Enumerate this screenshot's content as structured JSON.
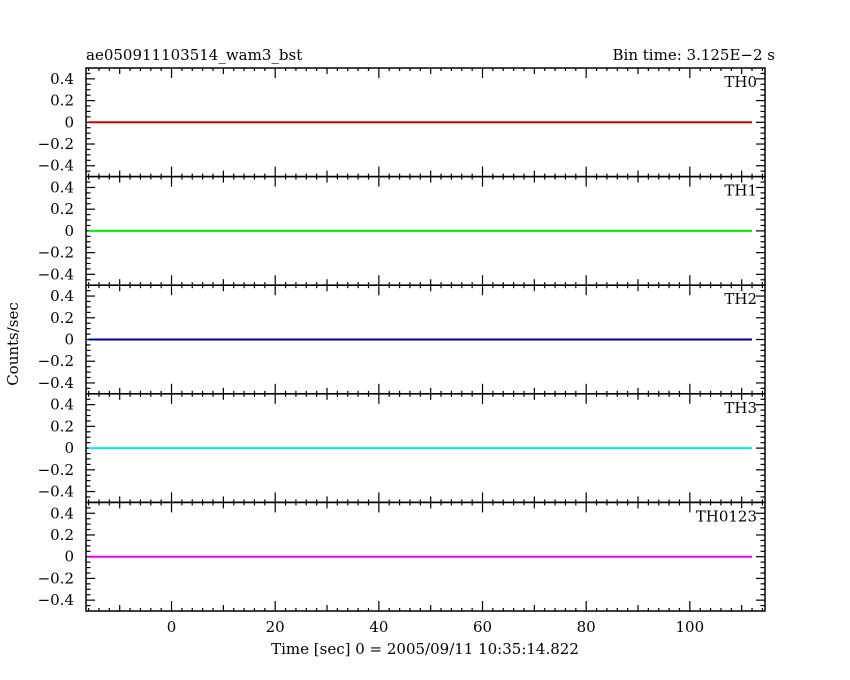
{
  "header": {
    "title": "ae050911103514_wam3_bst",
    "bin_time": "Bin time: 3.125E−2 s"
  },
  "chart_data": {
    "type": "line",
    "xlabel": "Time [sec] 0 = 2005/09/11 10:35:14.822",
    "ylabel": "Counts/sec",
    "xlim": [
      -16.5,
      114.5
    ],
    "x_ticks": [
      0,
      20,
      40,
      60,
      80,
      100
    ],
    "x_tick_labels": [
      "0",
      "20",
      "40",
      "60",
      "80",
      "100"
    ],
    "x_minor_step": 2,
    "ylim": [
      -0.5,
      0.5
    ],
    "y_ticks": [
      0.4,
      0.2,
      0,
      -0.2,
      -0.4
    ],
    "y_tick_labels": [
      "0.4",
      "0.2",
      "0",
      "−0.2",
      "−0.4"
    ],
    "y_minor_step": 0.05,
    "panels": [
      {
        "name": "TH0",
        "color": "#cc0000",
        "x": [
          -16,
          112
        ],
        "y": [
          0,
          0
        ]
      },
      {
        "name": "TH1",
        "color": "#00ee00",
        "x": [
          -16,
          112
        ],
        "y": [
          0,
          0
        ]
      },
      {
        "name": "TH2",
        "color": "#000099",
        "x": [
          -16,
          112
        ],
        "y": [
          0,
          0
        ]
      },
      {
        "name": "TH3",
        "color": "#00eeee",
        "x": [
          -16,
          112
        ],
        "y": [
          0,
          0
        ]
      },
      {
        "name": "TH0123",
        "color": "#ee00ee",
        "x": [
          -16,
          112
        ],
        "y": [
          0,
          0
        ]
      }
    ]
  }
}
